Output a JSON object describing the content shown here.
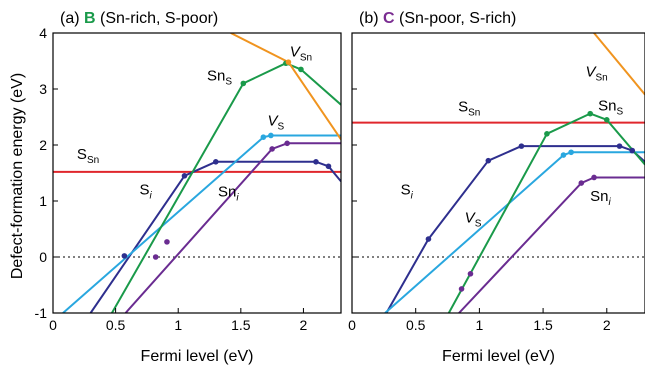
{
  "figure": {
    "ylabel": "Defect-formation energy (eV)"
  },
  "chart_data": [
    {
      "type": "line",
      "panel_tag": "(a)",
      "title_letter": "B",
      "title_letter_color": "#1a9a4a",
      "title_rest": "(Sn-rich, S-poor)",
      "xlabel": "Fermi level (eV)",
      "ylabel": "Defect-formation energy (eV)",
      "xlim": [
        0,
        2.3
      ],
      "ylim": [
        -1,
        4
      ],
      "xticks": [
        "0",
        "0.5",
        "1",
        "1.5",
        "2"
      ],
      "xtick_values": [
        0,
        0.5,
        1,
        1.5,
        2
      ],
      "yticks": [
        "-1",
        "0",
        "1",
        "2",
        "3",
        "4"
      ],
      "ytick_values": [
        -1,
        0,
        1,
        2,
        3,
        4
      ],
      "zero_line": "dotted",
      "series": [
        {
          "name": "S_Sn",
          "label_main": "S",
          "label_sub": "Sn",
          "label_italic": false,
          "color": "#e0262c",
          "points": [
            [
              0,
              1.52
            ],
            [
              2.3,
              1.52
            ]
          ],
          "dots": []
        },
        {
          "name": "S_i",
          "label_main": "S",
          "label_sub": "i",
          "label_italic": false,
          "sub_italic": true,
          "color": "#2e2f8e",
          "points": [
            [
              0.3,
              -1.0
            ],
            [
              1.05,
              1.45
            ],
            [
              1.3,
              1.7
            ],
            [
              2.1,
              1.7
            ],
            [
              2.2,
              1.62
            ],
            [
              2.3,
              1.35
            ]
          ],
          "dots": [
            [
              0.57,
              0.02
            ],
            [
              1.05,
              1.45
            ],
            [
              1.3,
              1.7
            ],
            [
              2.1,
              1.7
            ],
            [
              2.2,
              1.62
            ]
          ]
        },
        {
          "name": "V_S",
          "label_main": "V",
          "label_sub": "S",
          "label_italic": true,
          "color": "#29a7df",
          "points": [
            [
              0.08,
              -1.0
            ],
            [
              1.68,
              2.14
            ],
            [
              1.74,
              2.17
            ],
            [
              2.3,
              2.17
            ]
          ],
          "dots": [
            [
              1.68,
              2.14
            ],
            [
              1.74,
              2.17
            ]
          ]
        },
        {
          "name": "Sn_i",
          "label_main": "Sn",
          "label_sub": "i",
          "label_italic": false,
          "sub_italic": true,
          "color": "#6a2c91",
          "points": [
            [
              0.58,
              -1.0
            ],
            [
              1.75,
              1.93
            ],
            [
              1.87,
              2.03
            ],
            [
              2.3,
              2.03
            ]
          ],
          "dots": [
            [
              0.82,
              0.0
            ],
            [
              0.91,
              0.27
            ],
            [
              1.75,
              1.93
            ],
            [
              1.87,
              2.03
            ]
          ]
        },
        {
          "name": "Sn_S",
          "label_main": "Sn",
          "label_sub": "S",
          "label_italic": false,
          "color": "#1a9a4a",
          "points": [
            [
              0.47,
              -1.0
            ],
            [
              1.52,
              3.1
            ],
            [
              1.86,
              3.46
            ],
            [
              1.98,
              3.35
            ],
            [
              2.3,
              2.72
            ]
          ],
          "dots": [
            [
              1.52,
              3.1
            ],
            [
              1.86,
              3.46
            ],
            [
              1.98,
              3.35
            ]
          ]
        },
        {
          "name": "V_Sn",
          "label_main": "V",
          "label_sub": "Sn",
          "label_italic": true,
          "color": "#f0941f",
          "points": [
            [
              1.42,
              4.0
            ],
            [
              1.88,
              3.48
            ],
            [
              2.3,
              2.1
            ]
          ],
          "dots": [
            [
              1.88,
              3.48
            ]
          ]
        }
      ],
      "labels": [
        {
          "series": "S_Sn",
          "at": [
            0.28,
            1.75
          ]
        },
        {
          "series": "S_i",
          "at": [
            0.74,
            1.12
          ]
        },
        {
          "series": "V_S",
          "at": [
            1.78,
            2.35
          ]
        },
        {
          "series": "Sn_i",
          "at": [
            1.4,
            1.08
          ]
        },
        {
          "series": "Sn_S",
          "at": [
            1.33,
            3.15
          ]
        },
        {
          "series": "V_Sn",
          "at": [
            1.98,
            3.58
          ]
        }
      ]
    },
    {
      "type": "line",
      "panel_tag": "(b)",
      "title_letter": "C",
      "title_letter_color": "#7a2c91",
      "title_rest": "(Sn-poor, S-rich)",
      "xlabel": "Fermi level (eV)",
      "ylabel": "",
      "xlim": [
        0,
        2.3
      ],
      "ylim": [
        -1,
        4
      ],
      "xticks": [
        "0",
        "0.5",
        "1",
        "1.5",
        "2"
      ],
      "xtick_values": [
        0,
        0.5,
        1,
        1.5,
        2
      ],
      "yticks": [],
      "ytick_values": [
        -1,
        0,
        1,
        2,
        3,
        4
      ],
      "zero_line": "dotted",
      "series": [
        {
          "name": "S_Sn",
          "label_main": "S",
          "label_sub": "Sn",
          "label_italic": false,
          "color": "#e0262c",
          "points": [
            [
              0,
              2.4
            ],
            [
              2.3,
              2.4
            ]
          ],
          "dots": []
        },
        {
          "name": "S_i",
          "label_main": "S",
          "label_sub": "i",
          "label_italic": false,
          "sub_italic": true,
          "color": "#2e2f8e",
          "points": [
            [
              0.27,
              -1.0
            ],
            [
              0.6,
              0.32
            ],
            [
              1.07,
              1.72
            ],
            [
              1.33,
              1.98
            ],
            [
              2.1,
              1.98
            ],
            [
              2.2,
              1.9
            ],
            [
              2.3,
              1.7
            ]
          ],
          "dots": [
            [
              0.6,
              0.32
            ],
            [
              1.07,
              1.72
            ],
            [
              1.33,
              1.98
            ],
            [
              2.1,
              1.98
            ],
            [
              2.2,
              1.9
            ]
          ]
        },
        {
          "name": "V_S",
          "label_main": "V",
          "label_sub": "S",
          "label_italic": true,
          "color": "#29a7df",
          "points": [
            [
              0.26,
              -1.0
            ],
            [
              1.66,
              1.82
            ],
            [
              1.72,
              1.87
            ],
            [
              2.3,
              1.87
            ]
          ],
          "dots": [
            [
              1.66,
              1.82
            ],
            [
              1.72,
              1.87
            ]
          ]
        },
        {
          "name": "Sn_i",
          "label_main": "Sn",
          "label_sub": "i",
          "label_italic": false,
          "sub_italic": true,
          "color": "#6a2c91",
          "points": [
            [
              0.84,
              -1.0
            ],
            [
              1.8,
              1.32
            ],
            [
              1.9,
              1.42
            ],
            [
              2.3,
              1.42
            ]
          ],
          "dots": [
            [
              0.86,
              -0.57
            ],
            [
              0.93,
              -0.3
            ],
            [
              1.8,
              1.32
            ],
            [
              1.9,
              1.42
            ]
          ]
        },
        {
          "name": "Sn_S",
          "label_main": "Sn",
          "label_sub": "S",
          "label_italic": false,
          "color": "#1a9a4a",
          "points": [
            [
              0.76,
              -1.0
            ],
            [
              1.53,
              2.2
            ],
            [
              1.87,
              2.56
            ],
            [
              2.0,
              2.45
            ],
            [
              2.3,
              1.65
            ]
          ],
          "dots": [
            [
              1.53,
              2.2
            ],
            [
              1.87,
              2.56
            ],
            [
              2.0,
              2.45
            ]
          ]
        },
        {
          "name": "V_Sn",
          "label_main": "V",
          "label_sub": "Sn",
          "label_italic": true,
          "color": "#f0941f",
          "points": [
            [
              1.9,
              4.0
            ],
            [
              2.3,
              2.9
            ]
          ],
          "dots": []
        }
      ],
      "labels": [
        {
          "series": "S_Sn",
          "at": [
            0.92,
            2.6
          ]
        },
        {
          "series": "S_i",
          "at": [
            0.43,
            1.12
          ]
        },
        {
          "series": "V_S",
          "at": [
            0.95,
            0.62
          ]
        },
        {
          "series": "Sn_i",
          "at": [
            1.95,
            1.0
          ]
        },
        {
          "series": "Sn_S",
          "at": [
            2.03,
            2.62
          ]
        },
        {
          "series": "V_Sn",
          "at": [
            1.92,
            3.22
          ]
        }
      ]
    }
  ]
}
